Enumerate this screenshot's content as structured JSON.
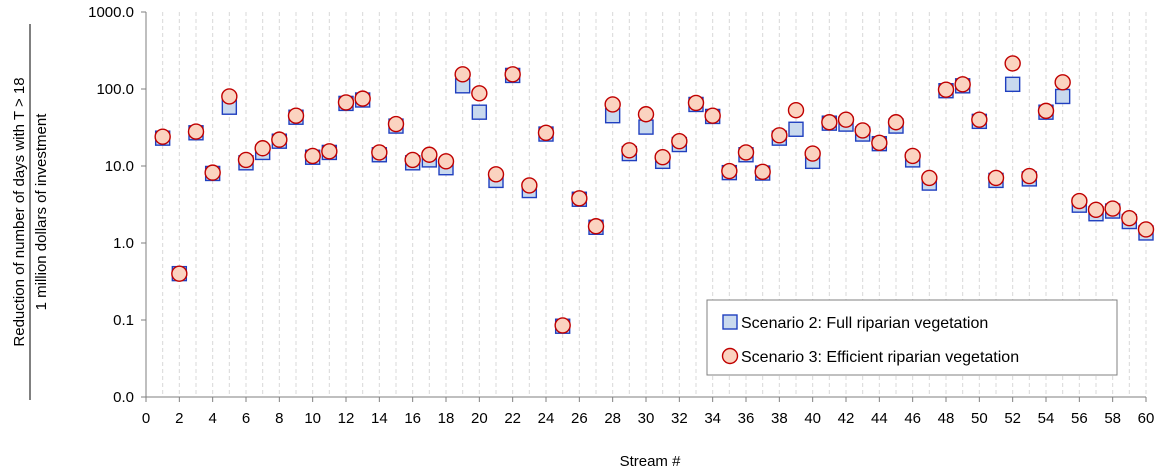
{
  "chart_data": {
    "type": "scatter",
    "xlabel": "Stream #",
    "ylabel_line1": "Reduction of number of days with T > 18",
    "ylabel_line2": "1 million dollars of investment",
    "y_scale": "log",
    "ylim": [
      0.01,
      1000
    ],
    "y_ticks": [
      0.01,
      0.1,
      1,
      10,
      100,
      1000
    ],
    "y_tick_labels": [
      "0.0",
      "0.1",
      "1.0",
      "10.0",
      "100.0",
      "1000.0"
    ],
    "xlim": [
      0,
      60
    ],
    "x_ticks": [
      0,
      2,
      4,
      6,
      8,
      10,
      12,
      14,
      16,
      18,
      20,
      22,
      24,
      26,
      28,
      30,
      32,
      34,
      36,
      38,
      40,
      42,
      44,
      46,
      48,
      50,
      52,
      54,
      56,
      58,
      60
    ],
    "grid": "vertical-dashed",
    "legend_position": "bottom-right",
    "x": [
      1,
      2,
      3,
      4,
      5,
      6,
      7,
      8,
      9,
      10,
      11,
      12,
      13,
      14,
      15,
      16,
      17,
      18,
      19,
      20,
      21,
      22,
      23,
      24,
      25,
      26,
      27,
      28,
      29,
      30,
      31,
      32,
      33,
      34,
      35,
      36,
      37,
      38,
      39,
      40,
      41,
      42,
      43,
      44,
      45,
      46,
      47,
      48,
      49,
      50,
      51,
      52,
      53,
      54,
      55,
      56,
      57,
      58,
      59,
      60
    ],
    "series": [
      {
        "name": "Scenario 2: Full riparian vegetation",
        "marker": "square",
        "fill": "#c9d9ee",
        "stroke": "#1f3fbf",
        "values": [
          23,
          0.4,
          27,
          8,
          58,
          11,
          15,
          21,
          43,
          13,
          15,
          65,
          72,
          14,
          33,
          11,
          12,
          9.5,
          110,
          50,
          6.5,
          150,
          4.8,
          26,
          0.083,
          3.7,
          1.6,
          45,
          14.5,
          32,
          11.5,
          19,
          63,
          44,
          8.2,
          14,
          8.1,
          23,
          30,
          11.5,
          36,
          35,
          26,
          19.5,
          33,
          12,
          6,
          95,
          110,
          38,
          6.5,
          115,
          6.8,
          50,
          80,
          3.1,
          2.4,
          2.6,
          1.9,
          1.35
        ]
      },
      {
        "name": "Scenario 3: Efficient riparian vegetation",
        "marker": "circle",
        "fill": "#fbd3c0",
        "stroke": "#c00000",
        "values": [
          24,
          0.4,
          28,
          8.2,
          80,
          12,
          17,
          22,
          45,
          13.5,
          15.5,
          67,
          75,
          15,
          35,
          12,
          14,
          11.5,
          155,
          88,
          7.8,
          155,
          5.6,
          27,
          0.085,
          3.8,
          1.65,
          63,
          16,
          47,
          13,
          21,
          66,
          45,
          8.6,
          15,
          8.4,
          25,
          53,
          14.5,
          37,
          40,
          29,
          20,
          37,
          13.5,
          7,
          98,
          115,
          40,
          7,
          215,
          7.4,
          52,
          122,
          3.5,
          2.7,
          2.8,
          2.1,
          1.5
        ]
      }
    ]
  }
}
